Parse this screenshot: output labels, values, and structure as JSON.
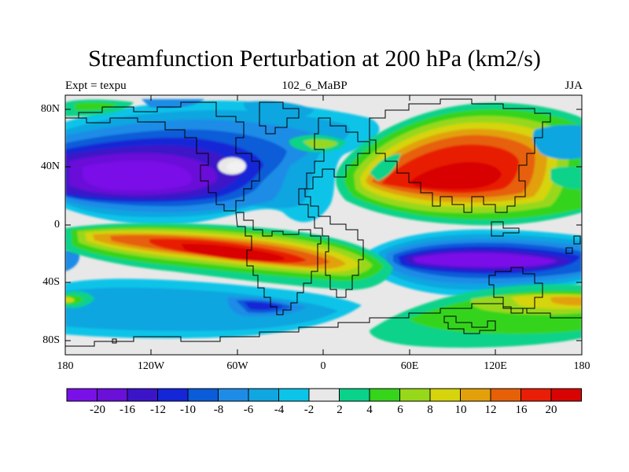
{
  "title": "Streamfunction Perturbation at 200 hPa (km2/s)",
  "left_string": "Expt = texpu",
  "center_string": "102_6_MaBP",
  "right_string": "JJA",
  "lat_ticks": [
    "80N",
    "40N",
    "0",
    "40S",
    "80S"
  ],
  "lon_ticks": [
    "180",
    "120W",
    "60W",
    "0",
    "60E",
    "120E",
    "180"
  ],
  "colorbar_labels": [
    "-20",
    "-16",
    "-12",
    "-10",
    "-8",
    "-6",
    "-4",
    "-2",
    "2",
    "4",
    "6",
    "8",
    "10",
    "12",
    "16",
    "20"
  ],
  "colorbar_colors": [
    "#7a10e8",
    "#6a10d8",
    "#3c14c8",
    "#1426d6",
    "#0a5cd8",
    "#1e8ce6",
    "#10a6e0",
    "#0cc4e8",
    "#e8e8e8",
    "#0ad28a",
    "#36d41a",
    "#98d81a",
    "#d6d40c",
    "#e2a00a",
    "#e66008",
    "#e81e06",
    "#d80404"
  ]
}
